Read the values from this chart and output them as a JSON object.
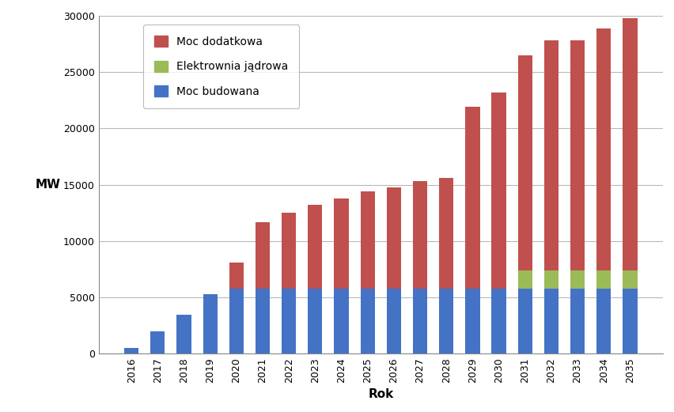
{
  "years": [
    2016,
    2017,
    2018,
    2019,
    2020,
    2021,
    2022,
    2023,
    2024,
    2025,
    2026,
    2027,
    2028,
    2029,
    2030,
    2031,
    2032,
    2033,
    2034,
    2035
  ],
  "moc_budowana": [
    500,
    2000,
    3500,
    5300,
    5800,
    5800,
    5800,
    5800,
    5800,
    5800,
    5800,
    5800,
    5800,
    5800,
    5800,
    5800,
    5800,
    5800,
    5800,
    5800
  ],
  "elektrownia_jadrowa": [
    0,
    0,
    0,
    0,
    0,
    0,
    0,
    0,
    0,
    0,
    0,
    0,
    0,
    0,
    0,
    1600,
    1600,
    1600,
    1600,
    1600
  ],
  "total": [
    500,
    2000,
    3500,
    5300,
    8100,
    11700,
    12500,
    13200,
    13800,
    14400,
    14800,
    15300,
    15600,
    21900,
    23200,
    26500,
    27800,
    27800,
    28900,
    29800
  ],
  "color_budowana": "#4472C4",
  "color_jadrowa": "#9BBB59",
  "color_dodatkowa": "#C0504D",
  "ylabel": "MW",
  "xlabel": "Rok",
  "ylim": [
    0,
    30000
  ],
  "yticks": [
    0,
    5000,
    10000,
    15000,
    20000,
    25000,
    30000
  ],
  "bg_color": "#FFFFFF",
  "grid_color": "#B8B8B8",
  "bar_width": 0.55,
  "figure_width": 8.53,
  "figure_height": 5.21,
  "dpi": 100
}
